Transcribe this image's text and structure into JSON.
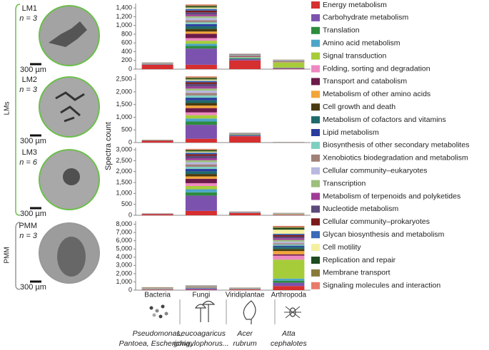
{
  "chart_data": {
    "type": "bar",
    "stacked": true,
    "y_label": "Spectra count",
    "categories": [
      "Bacteria",
      "Fungi",
      "Viridiplantae",
      "Arthropoda"
    ],
    "species": [
      [
        "Pseudomonas,",
        "Pantoea, Escherichia..."
      ],
      [
        "Leucoagaricus",
        "gongylophorus..."
      ],
      [
        "Acer",
        "rubrum"
      ],
      [
        "Atta",
        "cephalotes"
      ]
    ],
    "samples": [
      {
        "label": "LM1",
        "n_label": "n = 3",
        "scale": "300 µm"
      },
      {
        "label": "LM2",
        "n_label": "n = 3",
        "scale": "300 µm"
      },
      {
        "label": "LM3",
        "n_label": "n = 6",
        "scale": "300 µm"
      },
      {
        "label": "PMM",
        "n_label": "n = 3",
        "scale": "300 µm"
      }
    ],
    "groups": [
      "LMs",
      "PMM"
    ],
    "series": [
      {
        "name": "Energy metabolism",
        "color": "#d62f2f"
      },
      {
        "name": "Carbohydrate metabolism",
        "color": "#7b52ae"
      },
      {
        "name": "Translation",
        "color": "#2e8b3e"
      },
      {
        "name": "Amino acid metabolism",
        "color": "#4da6c8"
      },
      {
        "name": "Signal transduction",
        "color": "#a6cc3a"
      },
      {
        "name": "Folding, sorting and degradation",
        "color": "#ee88c0"
      },
      {
        "name": "Transport and catabolism",
        "color": "#6b1a4a"
      },
      {
        "name": "Metabolism of other amino acids",
        "color": "#f2a53a"
      },
      {
        "name": "Cell growth and death",
        "color": "#4a3a10"
      },
      {
        "name": "Metabolism of cofactors and vitamins",
        "color": "#1f6b6b"
      },
      {
        "name": "Lipid metabolism",
        "color": "#2a3d9e"
      },
      {
        "name": "Biosynthesis of other secondary metabolites",
        "color": "#7fcfc0"
      },
      {
        "name": "Xenobiotics biodegradation and metabolism",
        "color": "#a08078"
      },
      {
        "name": "Cellular community–eukaryotes",
        "color": "#b8b8e0"
      },
      {
        "name": "Transcription",
        "color": "#9cbf7a"
      },
      {
        "name": "Metabolism of terpenoids and polyketides",
        "color": "#a03c96"
      },
      {
        "name": "Nucleotide metabolism",
        "color": "#5b4a7a"
      },
      {
        "name": "Cellular community–prokaryotes",
        "color": "#7a1a1a"
      },
      {
        "name": "Glycan biosynthesis and metabolism",
        "color": "#3a6ab8"
      },
      {
        "name": "Cell motility",
        "color": "#f5f0a0"
      },
      {
        "name": "Replication and repair",
        "color": "#1f4a1f"
      },
      {
        "name": "Membrane transport",
        "color": "#8a7a3a"
      },
      {
        "name": "Signaling molecules and interaction",
        "color": "#e87a6a"
      }
    ],
    "panels": [
      {
        "ylim": [
          0,
          1500
        ],
        "yticks": [
          0,
          200,
          400,
          600,
          800,
          {
            "value": 1000,
            "label": "1,000"
          },
          {
            "value": 1200,
            "label": "1,200"
          },
          {
            "value": 1400,
            "label": "1,400"
          }
        ],
        "values": [
          [
            100,
            100,
            200,
            10
          ],
          [
            10,
            370,
            30,
            15
          ],
          [
            5,
            60,
            20,
            5
          ],
          [
            5,
            50,
            15,
            5
          ],
          [
            5,
            70,
            10,
            120
          ],
          [
            3,
            60,
            10,
            8
          ],
          [
            3,
            100,
            10,
            5
          ],
          [
            3,
            50,
            5,
            5
          ],
          [
            2,
            60,
            5,
            5
          ],
          [
            2,
            60,
            5,
            4
          ],
          [
            2,
            50,
            5,
            4
          ],
          [
            1,
            40,
            5,
            3
          ],
          [
            1,
            50,
            5,
            4
          ],
          [
            1,
            50,
            3,
            4
          ],
          [
            1,
            40,
            3,
            3
          ],
          [
            1,
            40,
            3,
            3
          ],
          [
            1,
            50,
            5,
            3
          ],
          [
            2,
            40,
            3,
            2
          ],
          [
            1,
            40,
            3,
            2
          ],
          [
            1,
            30,
            2,
            5
          ],
          [
            1,
            30,
            2,
            2
          ],
          [
            3,
            20,
            3,
            2
          ],
          [
            1,
            20,
            2,
            1
          ]
        ]
      },
      {
        "ylim": [
          0,
          2700
        ],
        "yticks": [
          0,
          500,
          {
            "value": 1000,
            "label": "1,000"
          },
          {
            "value": 1500,
            "label": "1,500"
          },
          {
            "value": 2000,
            "label": "2,000"
          },
          {
            "value": 2500,
            "label": "2,500"
          }
        ],
        "values": [
          [
            70,
            150,
            250,
            5
          ],
          [
            10,
            550,
            30,
            3
          ],
          [
            5,
            130,
            15,
            1
          ],
          [
            3,
            120,
            15,
            1
          ],
          [
            3,
            130,
            10,
            2
          ],
          [
            2,
            110,
            8,
            1
          ],
          [
            2,
            170,
            8,
            1
          ],
          [
            2,
            100,
            5,
            1
          ],
          [
            1,
            100,
            5,
            1
          ],
          [
            1,
            110,
            5,
            1
          ],
          [
            1,
            100,
            5,
            1
          ],
          [
            1,
            90,
            3,
            1
          ],
          [
            1,
            100,
            3,
            0
          ],
          [
            1,
            90,
            3,
            0
          ],
          [
            1,
            80,
            3,
            0
          ],
          [
            1,
            80,
            3,
            0
          ],
          [
            1,
            100,
            3,
            1
          ],
          [
            1,
            70,
            3,
            0
          ],
          [
            1,
            60,
            3,
            0
          ],
          [
            1,
            50,
            2,
            1
          ],
          [
            1,
            50,
            2,
            0
          ],
          [
            3,
            40,
            2,
            1
          ],
          [
            1,
            30,
            2,
            0
          ]
        ]
      },
      {
        "ylim": [
          0,
          3100
        ],
        "yticks": [
          0,
          500,
          {
            "value": 1000,
            "label": "1,000"
          },
          {
            "value": 1500,
            "label": "1,500"
          },
          {
            "value": 2000,
            "label": "2,000"
          },
          {
            "value": 2500,
            "label": "2,500"
          },
          {
            "value": 3000,
            "label": "3,000"
          }
        ],
        "values": [
          [
            50,
            200,
            100,
            20
          ],
          [
            10,
            700,
            15,
            10
          ],
          [
            3,
            150,
            8,
            5
          ],
          [
            3,
            140,
            5,
            5
          ],
          [
            2,
            150,
            5,
            20
          ],
          [
            2,
            130,
            5,
            5
          ],
          [
            2,
            200,
            5,
            5
          ],
          [
            1,
            110,
            3,
            4
          ],
          [
            1,
            110,
            3,
            4
          ],
          [
            1,
            120,
            3,
            4
          ],
          [
            1,
            110,
            3,
            3
          ],
          [
            1,
            100,
            2,
            3
          ],
          [
            1,
            110,
            2,
            3
          ],
          [
            1,
            100,
            2,
            3
          ],
          [
            1,
            90,
            2,
            2
          ],
          [
            1,
            90,
            2,
            2
          ],
          [
            1,
            110,
            2,
            3
          ],
          [
            1,
            80,
            2,
            2
          ],
          [
            1,
            70,
            2,
            2
          ],
          [
            1,
            50,
            1,
            2
          ],
          [
            1,
            50,
            1,
            1
          ],
          [
            3,
            40,
            1,
            1
          ],
          [
            1,
            30,
            1,
            1
          ]
        ]
      },
      {
        "ylim": [
          0,
          8400
        ],
        "yticks": [
          0,
          {
            "value": 1000,
            "label": "1,000"
          },
          {
            "value": 2000,
            "label": "2,000"
          },
          {
            "value": 3000,
            "label": "3,000"
          },
          {
            "value": 4000,
            "label": "4,000"
          },
          {
            "value": 5000,
            "label": "5,000"
          },
          {
            "value": 6000,
            "label": "6,000"
          },
          {
            "value": 7000,
            "label": "7,000"
          },
          {
            "value": 8000,
            "label": "8,000"
          }
        ],
        "values": [
          [
            50,
            60,
            80,
            500
          ],
          [
            30,
            150,
            30,
            400
          ],
          [
            20,
            30,
            20,
            250
          ],
          [
            20,
            30,
            15,
            250
          ],
          [
            30,
            30,
            15,
            2300
          ],
          [
            15,
            25,
            10,
            500
          ],
          [
            10,
            40,
            10,
            150
          ],
          [
            15,
            20,
            10,
            400
          ],
          [
            10,
            20,
            10,
            250
          ],
          [
            10,
            20,
            8,
            250
          ],
          [
            10,
            20,
            8,
            150
          ],
          [
            8,
            15,
            8,
            150
          ],
          [
            8,
            15,
            8,
            150
          ],
          [
            8,
            15,
            8,
            200
          ],
          [
            8,
            15,
            8,
            200
          ],
          [
            8,
            10,
            8,
            200
          ],
          [
            10,
            20,
            8,
            200
          ],
          [
            15,
            10,
            8,
            200
          ],
          [
            8,
            10,
            5,
            150
          ],
          [
            10,
            10,
            5,
            500
          ],
          [
            10,
            10,
            5,
            200
          ],
          [
            40,
            10,
            20,
            150
          ],
          [
            5,
            5,
            5,
            100
          ]
        ]
      }
    ]
  }
}
